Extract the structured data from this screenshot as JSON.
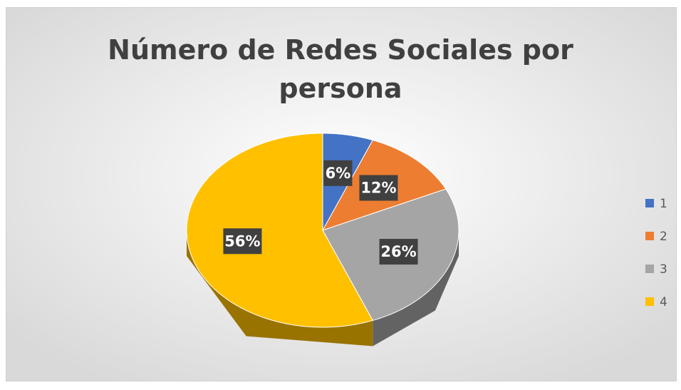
{
  "chart_data": {
    "type": "pie",
    "title": "Número de Redes Sociales por persona",
    "categories": [
      "1",
      "2",
      "3",
      "4"
    ],
    "values": [
      6,
      12,
      26,
      56
    ],
    "value_labels": [
      "6%",
      "12%",
      "26%",
      "56%"
    ],
    "colors": [
      "#4472c4",
      "#ed7d31",
      "#a5a5a5",
      "#ffc000"
    ],
    "legend": "right"
  }
}
